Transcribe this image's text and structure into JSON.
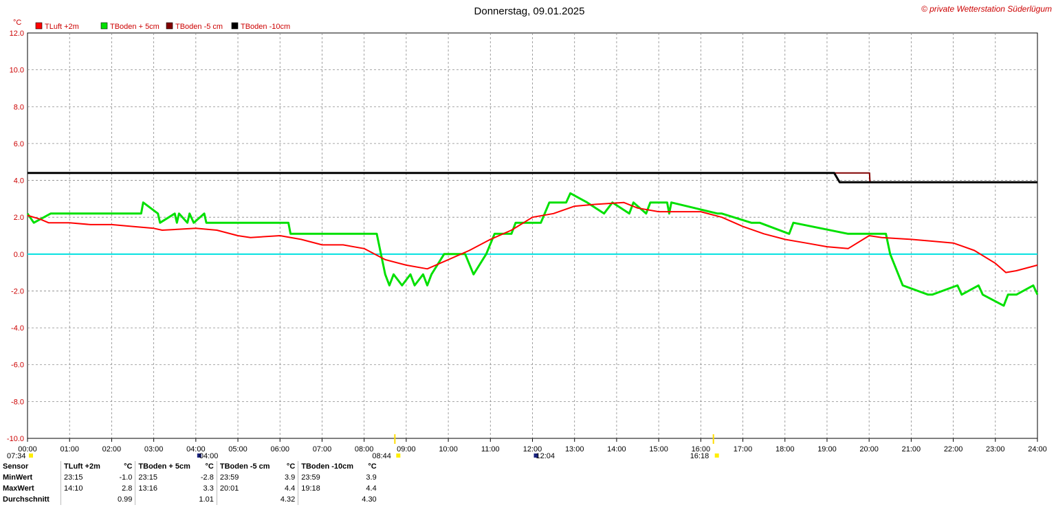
{
  "title": "Donnerstag, 09.01.2025",
  "copyright": "© private Wetterstation Süderlügum",
  "unit": "°C",
  "chart_data": {
    "type": "line",
    "title": "Donnerstag, 09.01.2025",
    "ylim": [
      -10,
      12
    ],
    "xlim": [
      0,
      24
    ],
    "y_ticks": [
      "12.0",
      "10.0",
      "8.0",
      "6.0",
      "4.0",
      "2.0",
      "0.0",
      "-2.0",
      "-4.0",
      "-6.0",
      "-8.0",
      "-10.0"
    ],
    "x_ticks": [
      "00:00",
      "01:00",
      "02:00",
      "03:00",
      "04:00",
      "05:00",
      "06:00",
      "07:00",
      "08:00",
      "09:00",
      "10:00",
      "11:00",
      "12:00",
      "13:00",
      "14:00",
      "15:00",
      "16:00",
      "17:00",
      "18:00",
      "19:00",
      "20:00",
      "21:00",
      "22:00",
      "23:00",
      "24:00"
    ],
    "grid": true,
    "legend_position": "top-left",
    "reference_line": {
      "y": 0,
      "color": "#00e0e0"
    },
    "series": [
      {
        "name": "TLuft +2m",
        "color": "#ff0000",
        "x": [
          0,
          0.3,
          0.5,
          1,
          1.5,
          2,
          2.5,
          3,
          3.2,
          4,
          4.5,
          5,
          5.3,
          6,
          6.5,
          7,
          7.5,
          8,
          8.5,
          9,
          9.5,
          10,
          10.5,
          11,
          11.5,
          12,
          12.5,
          13,
          13.5,
          14.17,
          14.5,
          15,
          15.5,
          16,
          16.5,
          17,
          17.5,
          18,
          18.5,
          19,
          19.5,
          20,
          20.3,
          21,
          21.5,
          22,
          22.5,
          23,
          23.25,
          23.5,
          24
        ],
        "y": [
          2.1,
          1.9,
          1.7,
          1.7,
          1.6,
          1.6,
          1.5,
          1.4,
          1.3,
          1.4,
          1.3,
          1.0,
          0.9,
          1.0,
          0.8,
          0.5,
          0.5,
          0.3,
          -0.3,
          -0.6,
          -0.8,
          -0.3,
          0.2,
          0.8,
          1.3,
          2.0,
          2.2,
          2.6,
          2.7,
          2.8,
          2.5,
          2.3,
          2.3,
          2.3,
          2.0,
          1.5,
          1.1,
          0.8,
          0.6,
          0.4,
          0.3,
          1.0,
          0.9,
          0.8,
          0.7,
          0.6,
          0.2,
          -0.5,
          -1.0,
          -0.9,
          -0.6
        ]
      },
      {
        "name": "TBoden + 5cm",
        "color": "#00e000",
        "x": [
          0,
          0.15,
          0.55,
          2.7,
          2.75,
          3.1,
          3.15,
          3.5,
          3.55,
          3.6,
          3.8,
          3.85,
          3.95,
          4.2,
          4.25,
          6.2,
          6.25,
          8.3,
          8.5,
          8.6,
          8.7,
          8.9,
          9.1,
          9.2,
          9.4,
          9.5,
          9.6,
          9.9,
          10.4,
          10.6,
          10.9,
          11.1,
          11.5,
          11.6,
          12.2,
          12.4,
          12.8,
          12.9,
          13.3,
          13.7,
          13.9,
          14.3,
          14.4,
          14.7,
          14.8,
          15.2,
          15.25,
          15.3,
          16.4,
          16.5,
          17.2,
          17.4,
          18.1,
          18.2,
          19.5,
          20.0,
          20.4,
          20.5,
          20.8,
          21.4,
          21.5,
          22.1,
          22.2,
          22.6,
          22.7,
          23.2,
          23.3,
          23.5,
          23.9,
          24
        ],
        "y": [
          2.2,
          1.7,
          2.2,
          2.2,
          2.8,
          2.2,
          1.7,
          2.2,
          1.7,
          2.2,
          1.7,
          2.2,
          1.7,
          2.2,
          1.7,
          1.7,
          1.1,
          1.1,
          -1.1,
          -1.7,
          -1.1,
          -1.7,
          -1.1,
          -1.7,
          -1.1,
          -1.7,
          -1.1,
          0.0,
          0.0,
          -1.1,
          0.0,
          1.1,
          1.1,
          1.7,
          1.7,
          2.8,
          2.8,
          3.3,
          2.8,
          2.2,
          2.8,
          2.2,
          2.8,
          2.2,
          2.8,
          2.8,
          2.2,
          2.8,
          2.2,
          2.2,
          1.7,
          1.7,
          1.1,
          1.7,
          1.1,
          1.1,
          1.1,
          0.0,
          -1.7,
          -2.2,
          -2.2,
          -1.7,
          -2.2,
          -1.7,
          -2.2,
          -2.8,
          -2.2,
          -2.2,
          -1.7,
          -2.2
        ]
      },
      {
        "name": "TBoden -5 cm",
        "color": "#800000",
        "x": [
          0,
          19.18,
          20.01,
          20.02,
          24
        ],
        "y": [
          4.4,
          4.4,
          4.4,
          3.9,
          3.9
        ]
      },
      {
        "name": "TBoden -10cm",
        "color": "#000000",
        "x": [
          0,
          19.17,
          19.3,
          24
        ],
        "y": [
          4.4,
          4.4,
          3.9,
          3.9
        ]
      }
    ],
    "sun_markers": [
      {
        "time": "07:34",
        "hour": 0
      },
      {
        "time": "04:00",
        "hour": 4
      },
      {
        "time": "08:44",
        "hour": 8.73
      },
      {
        "time": "12:04",
        "hour": 12
      },
      {
        "time": "16:18",
        "hour": 16.3
      }
    ]
  },
  "stats": {
    "headers": [
      "Sensor",
      "TLuft +2m",
      "°C",
      "TBoden + 5cm",
      "°C",
      "TBoden -5 cm",
      "°C",
      "TBoden -10cm",
      "°C"
    ],
    "rows": [
      [
        "MinWert",
        "23:15",
        "-1.0",
        "23:15",
        "-2.8",
        "23:59",
        "3.9",
        "23:59",
        "3.9"
      ],
      [
        "MaxWert",
        "14:10",
        "2.8",
        "13:16",
        "3.3",
        "20:01",
        "4.4",
        "19:18",
        "4.4"
      ],
      [
        "Durchschnitt",
        "",
        "0.99",
        "",
        "1.01",
        "",
        "4.32",
        "",
        "4.30"
      ]
    ]
  }
}
